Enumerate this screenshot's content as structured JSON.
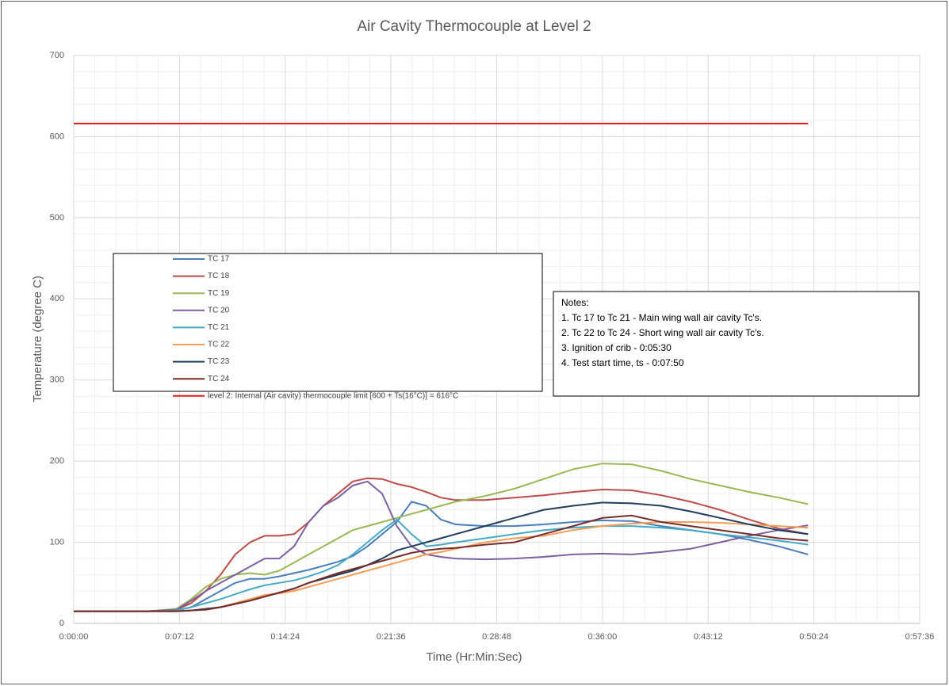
{
  "chart_data": {
    "type": "line",
    "title": "Air Cavity Thermocouple at Level 2",
    "x_label": "Time (Hr:Min:Sec)",
    "y_label": "Temperature (degree C)",
    "x": [
      0,
      300,
      420,
      480,
      540,
      600,
      660,
      720,
      780,
      840,
      900,
      960,
      1020,
      1080,
      1140,
      1200,
      1260,
      1320,
      1380,
      1440,
      1500,
      1560,
      1680,
      1800,
      1920,
      2040,
      2160,
      2280,
      2400,
      2520,
      2640,
      2760,
      2880,
      3000
    ],
    "series": [
      {
        "name": "TC 17",
        "color": "#4a7ebb",
        "values": [
          15,
          15,
          16,
          20,
          30,
          40,
          50,
          55,
          55,
          58,
          62,
          66,
          71,
          76,
          83,
          95,
          110,
          125,
          150,
          145,
          128,
          122,
          120,
          120,
          122,
          125,
          127,
          126,
          120,
          115,
          110,
          103,
          95,
          85
        ]
      },
      {
        "name": "TC 18",
        "color": "#be4b48",
        "values": [
          15,
          15,
          17,
          25,
          40,
          60,
          85,
          100,
          108,
          108,
          110,
          125,
          145,
          160,
          175,
          179,
          178,
          172,
          168,
          162,
          155,
          152,
          152,
          155,
          158,
          162,
          165,
          164,
          158,
          150,
          140,
          128,
          117,
          110
        ]
      },
      {
        "name": "TC 19",
        "color": "#98b954",
        "values": [
          15,
          15,
          18,
          30,
          45,
          55,
          60,
          62,
          60,
          65,
          75,
          85,
          95,
          105,
          115,
          120,
          125,
          130,
          135,
          140,
          145,
          150,
          157,
          166,
          178,
          190,
          197,
          196,
          188,
          178,
          170,
          162,
          155,
          147
        ]
      },
      {
        "name": "TC 20",
        "color": "#7d60a0",
        "values": [
          15,
          15,
          17,
          28,
          40,
          50,
          60,
          70,
          80,
          80,
          95,
          125,
          145,
          155,
          170,
          175,
          160,
          120,
          95,
          85,
          82,
          80,
          79,
          80,
          82,
          85,
          86,
          85,
          88,
          92,
          100,
          108,
          115,
          121
        ]
      },
      {
        "name": "TC 21",
        "color": "#46aac5",
        "values": [
          15,
          15,
          16,
          20,
          25,
          30,
          36,
          42,
          47,
          50,
          53,
          58,
          64,
          72,
          85,
          100,
          115,
          128,
          110,
          95,
          97,
          100,
          105,
          110,
          115,
          118,
          120,
          120,
          118,
          115,
          110,
          106,
          102,
          97
        ]
      },
      {
        "name": "TC 22",
        "color": "#f59d56",
        "values": [
          15,
          15,
          15,
          16,
          17,
          20,
          25,
          30,
          35,
          37,
          40,
          45,
          50,
          55,
          60,
          65,
          70,
          75,
          80,
          85,
          88,
          92,
          100,
          105,
          108,
          115,
          120,
          123,
          125,
          125,
          124,
          122,
          120,
          118
        ]
      },
      {
        "name": "TC 23",
        "color": "#203f5f",
        "values": [
          15,
          15,
          15,
          16,
          18,
          20,
          24,
          28,
          33,
          38,
          43,
          50,
          55,
          60,
          65,
          72,
          80,
          90,
          95,
          100,
          105,
          110,
          120,
          130,
          140,
          145,
          149,
          148,
          145,
          138,
          130,
          122,
          115,
          110
        ]
      },
      {
        "name": "TC 24",
        "color": "#772c2a",
        "values": [
          15,
          15,
          15,
          16,
          17,
          20,
          24,
          28,
          33,
          38,
          43,
          50,
          56,
          62,
          67,
          72,
          77,
          82,
          87,
          90,
          92,
          93,
          97,
          100,
          110,
          120,
          130,
          133,
          125,
          120,
          115,
          110,
          105,
          102
        ]
      },
      {
        "name": "level 2: Internal (Air cavity) thermocouple limit [600 + Ts(16°C)] = 616°C",
        "color": "#e3201b",
        "values": [
          616,
          616,
          616,
          616,
          616,
          616,
          616,
          616,
          616,
          616,
          616,
          616,
          616,
          616,
          616,
          616,
          616,
          616,
          616,
          616,
          616,
          616,
          616,
          616,
          616,
          616,
          616,
          616,
          616,
          616,
          616,
          616,
          616,
          616
        ]
      }
    ],
    "xlim": [
      0,
      3456
    ],
    "xticks": [
      {
        "value": 0,
        "label": "0:00:00"
      },
      {
        "value": 432,
        "label": "0:07:12"
      },
      {
        "value": 864,
        "label": "0:14:24"
      },
      {
        "value": 1296,
        "label": "0:21:36"
      },
      {
        "value": 1728,
        "label": "0:28:48"
      },
      {
        "value": 2160,
        "label": "0:36:00"
      },
      {
        "value": 2592,
        "label": "0:43:12"
      },
      {
        "value": 3024,
        "label": "0:50:24"
      },
      {
        "value": 3456,
        "label": "0:57:36"
      }
    ],
    "ylim": [
      0,
      700
    ],
    "yticks": [
      0,
      100,
      200,
      300,
      400,
      500,
      600,
      700
    ],
    "grid": true,
    "minor_grid": true,
    "annotations": [
      "Notes:",
      "1. Tc 17 to Tc 21 - Main wing wall air cavity Tc's.",
      "2. Tc 22 to Tc 24 - Short wing wall air cavity Tc's.",
      "3. Ignition of crib - 0:05:30",
      "4. Test start time, ts - 0:07:50"
    ]
  }
}
